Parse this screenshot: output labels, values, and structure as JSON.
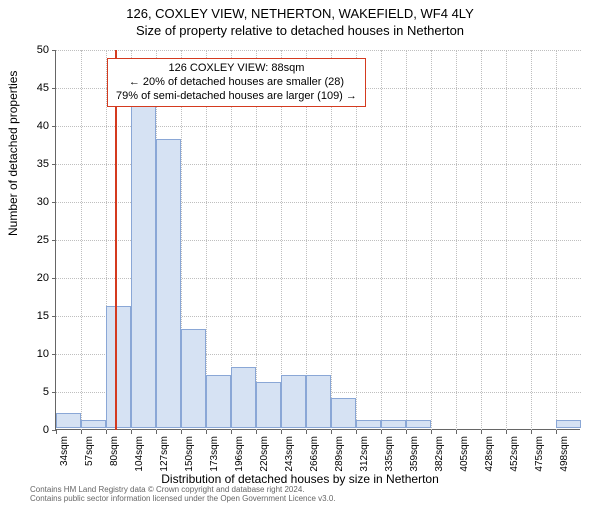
{
  "title_main": "126, COXLEY VIEW, NETHERTON, WAKEFIELD, WF4 4LY",
  "title_sub": "Size of property relative to detached houses in Netherton",
  "ylabel": "Number of detached properties",
  "xlabel": "Distribution of detached houses by size in Netherton",
  "chart": {
    "type": "histogram",
    "ymax": 50,
    "ytick_step": 5,
    "yticks": [
      0,
      5,
      10,
      15,
      20,
      25,
      30,
      35,
      40,
      45,
      50
    ],
    "xticks": [
      "34sqm",
      "57sqm",
      "80sqm",
      "104sqm",
      "127sqm",
      "150sqm",
      "173sqm",
      "196sqm",
      "220sqm",
      "243sqm",
      "266sqm",
      "289sqm",
      "312sqm",
      "335sqm",
      "359sqm",
      "382sqm",
      "405sqm",
      "428sqm",
      "452sqm",
      "475sqm",
      "498sqm"
    ],
    "values": [
      2,
      1,
      16,
      45,
      38,
      13,
      7,
      8,
      6,
      7,
      7,
      4,
      1,
      1,
      1,
      0,
      0,
      0,
      0,
      0,
      1
    ],
    "bar_fill": "#d6e2f3",
    "bar_stroke": "#8aa7d6",
    "grid_color": "#bfbfbf",
    "axis_color": "#666666",
    "background": "#ffffff",
    "ref_line_index": 2.35,
    "ref_line_color": "#d43a1f"
  },
  "annotation": {
    "line1": "126 COXLEY VIEW: 88sqm",
    "line2": "← 20% of detached houses are smaller (28)",
    "line3": "79% of semi-detached houses are larger (109) →"
  },
  "footer_line1": "Contains HM Land Registry data © Crown copyright and database right 2024.",
  "footer_line2": "Contains public sector information licensed under the Open Government Licence v3.0."
}
